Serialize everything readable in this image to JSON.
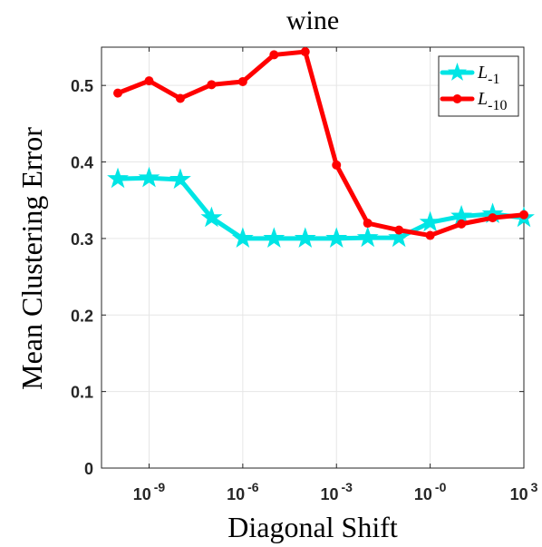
{
  "chart_data": {
    "type": "line",
    "title": "wine",
    "xlabel": "Diagonal Shift",
    "ylabel": "Mean Clustering Error",
    "x_scale": "log",
    "x": [
      1e-10,
      1e-09,
      1e-08,
      1e-07,
      1e-06,
      1e-05,
      0.0001,
      0.001,
      0.01,
      0.1,
      1,
      10,
      100,
      1000
    ],
    "xlim": [
      3e-11,
      1000
    ],
    "ylim": [
      0,
      0.55
    ],
    "x_ticks": [
      {
        "base": "10",
        "exp": "-9"
      },
      {
        "base": "10",
        "exp": "-6"
      },
      {
        "base": "10",
        "exp": "-3"
      },
      {
        "base": "10",
        "exp": "-0"
      },
      {
        "base": "10",
        "exp": "3"
      }
    ],
    "y_ticks": [
      "0",
      "0.1",
      "0.2",
      "0.3",
      "0.4",
      "0.5"
    ],
    "grid": true,
    "legend_position": "top-right",
    "series": [
      {
        "name_base": "L",
        "name_sub": "-1",
        "color": "#00e5e5",
        "marker": "star",
        "values": [
          0.378,
          0.379,
          0.377,
          0.327,
          0.3,
          0.3,
          0.3,
          0.3,
          0.301,
          0.301,
          0.321,
          0.329,
          0.332,
          0.327
        ]
      },
      {
        "name_base": "L",
        "name_sub": "-10",
        "color": "#ff0000",
        "marker": "circle",
        "values": [
          0.49,
          0.506,
          0.483,
          0.501,
          0.505,
          0.54,
          0.544,
          0.396,
          0.32,
          0.311,
          0.304,
          0.319,
          0.327,
          0.331
        ]
      }
    ]
  }
}
